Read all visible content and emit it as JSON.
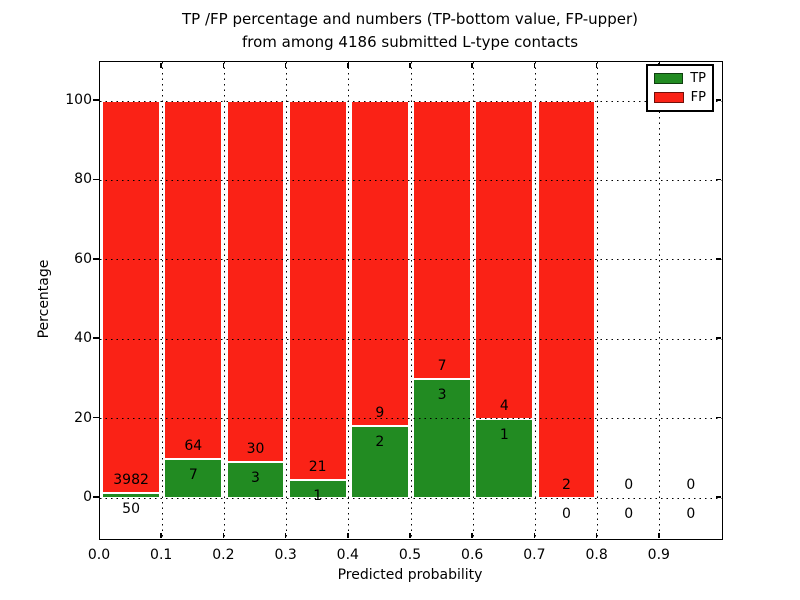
{
  "figure": {
    "title_line1": "TP /FP percentage and numbers (TP-bottom value, FP-upper)",
    "title_line2": "from among 4186 submitted L-type contacts"
  },
  "chart_data": {
    "type": "bar",
    "stacked": true,
    "title": "TP /FP percentage and numbers (TP-bottom value, FP-upper)\nfrom among 4186 submitted L-type contacts",
    "xlabel": "Predicted probability",
    "ylabel": "Percentage",
    "xlim": [
      0.0,
      1.0
    ],
    "ylim": [
      -10,
      110
    ],
    "x_tick_labels": [
      "0.0",
      "0.1",
      "0.2",
      "0.3",
      "0.4",
      "0.5",
      "0.6",
      "0.7",
      "0.8",
      "0.9"
    ],
    "y_ticks": [
      0,
      20,
      40,
      60,
      80,
      100
    ],
    "grid": "dotted",
    "legend_position": "upper right",
    "total_submitted_contacts": 4186,
    "series": [
      {
        "name": "TP",
        "color": "#228b22",
        "counts": [
          50,
          7,
          3,
          1,
          2,
          3,
          1,
          0,
          0,
          0
        ]
      },
      {
        "name": "FP",
        "color": "#fa2216",
        "counts": [
          3982,
          64,
          30,
          21,
          9,
          7,
          4,
          2,
          0,
          0
        ]
      }
    ],
    "bins": [
      {
        "range": [
          0.0,
          0.1
        ],
        "tp_count": "50",
        "fp_count": "3982",
        "tp_pct": 1.24,
        "fp_pct": 98.76
      },
      {
        "range": [
          0.1,
          0.2
        ],
        "tp_count": "7",
        "fp_count": "64",
        "tp_pct": 9.86,
        "fp_pct": 90.14
      },
      {
        "range": [
          0.2,
          0.3
        ],
        "tp_count": "3",
        "fp_count": "30",
        "tp_pct": 9.09,
        "fp_pct": 90.91
      },
      {
        "range": [
          0.3,
          0.4
        ],
        "tp_count": "1",
        "fp_count": "21",
        "tp_pct": 4.55,
        "fp_pct": 95.45
      },
      {
        "range": [
          0.4,
          0.5
        ],
        "tp_count": "2",
        "fp_count": "9",
        "tp_pct": 18.18,
        "fp_pct": 81.82
      },
      {
        "range": [
          0.5,
          0.6
        ],
        "tp_count": "3",
        "fp_count": "7",
        "tp_pct": 30.0,
        "fp_pct": 70.0
      },
      {
        "range": [
          0.6,
          0.7
        ],
        "tp_count": "1",
        "fp_count": "4",
        "tp_pct": 20.0,
        "fp_pct": 80.0
      },
      {
        "range": [
          0.7,
          0.8
        ],
        "tp_count": "0",
        "fp_count": "2",
        "tp_pct": 0.0,
        "fp_pct": 100.0
      },
      {
        "range": [
          0.8,
          0.9
        ],
        "tp_count": "0",
        "fp_count": "0",
        "tp_pct": 0.0,
        "fp_pct": 0.0
      },
      {
        "range": [
          0.9,
          1.0
        ],
        "tp_count": "0",
        "fp_count": "0",
        "tp_pct": 0.0,
        "fp_pct": 0.0
      }
    ],
    "colors": {
      "tp": "#228b22",
      "fp": "#fa2216",
      "background": "#ffffff",
      "grid": "#000000"
    },
    "legend": {
      "entries": [
        {
          "label": "TP",
          "key": "tp"
        },
        {
          "label": "FP",
          "key": "fp"
        }
      ]
    }
  }
}
